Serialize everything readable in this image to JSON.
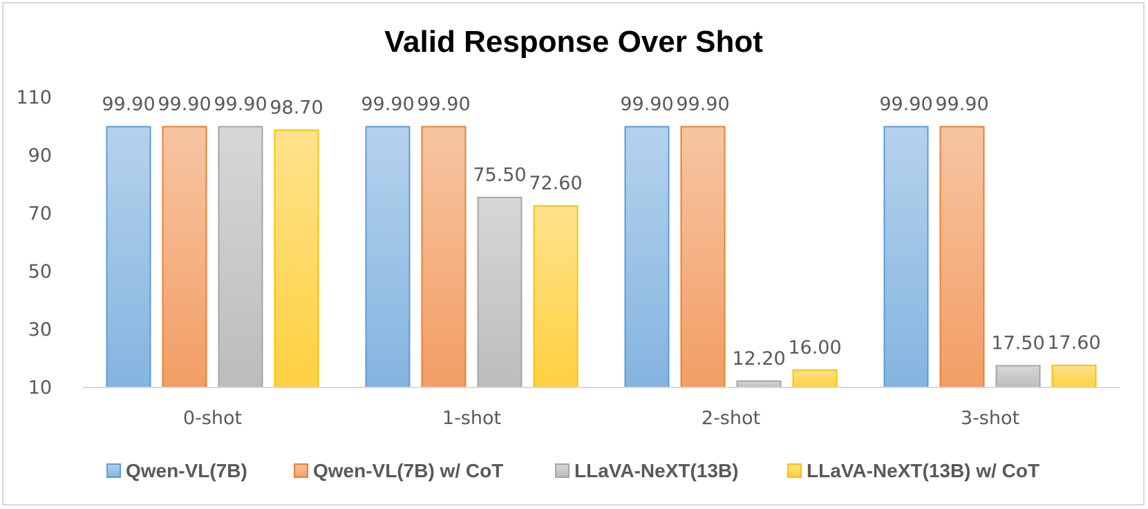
{
  "chart_data": {
    "type": "bar",
    "title": "Valid Response Over Shot",
    "categories": [
      "0-shot",
      "1-shot",
      "2-shot",
      "3-shot"
    ],
    "series": [
      {
        "name": "Qwen-VL(7B)",
        "values": [
          99.9,
          99.9,
          99.9,
          99.9
        ],
        "labels": [
          "99.90",
          "99.90",
          "99.90",
          "99.90"
        ],
        "color": "#5b9bd5"
      },
      {
        "name": "Qwen-VL(7B) w/ CoT",
        "values": [
          99.9,
          99.9,
          99.9,
          99.9
        ],
        "labels": [
          "99.90",
          "99.90",
          "99.90",
          "99.90"
        ],
        "color": "#ed7d31"
      },
      {
        "name": "LLaVA-NeXT(13B)",
        "values": [
          99.9,
          75.5,
          12.2,
          17.5
        ],
        "labels": [
          "99.90",
          "75.50",
          "12.20",
          "17.50"
        ],
        "color": "#a5a5a5"
      },
      {
        "name": "LLaVA-NeXT(13B) w/ CoT",
        "values": [
          98.7,
          72.6,
          16.0,
          17.6
        ],
        "labels": [
          "98.70",
          "72.60",
          "16.00",
          "17.60"
        ],
        "color": "#ffc000"
      }
    ],
    "y_ticks": [
      "10",
      "30",
      "50",
      "70",
      "90",
      "110"
    ],
    "ylim": [
      10,
      110
    ],
    "xlabel": "",
    "ylabel": "",
    "grid": false,
    "legend_position": "bottom"
  }
}
